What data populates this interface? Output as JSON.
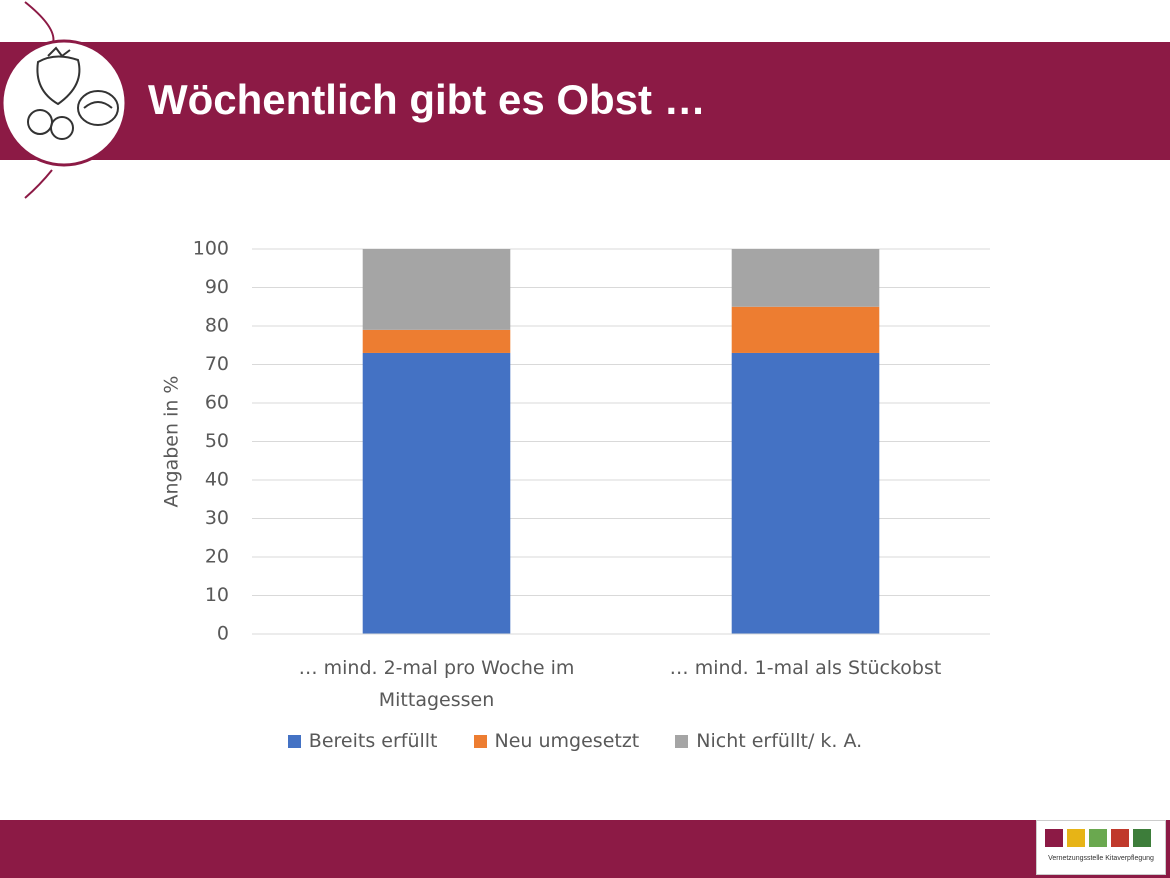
{
  "slide_title": "Wöchentlich gibt es Obst …",
  "logo_text": "Vernetzungsstelle Kitaverpflegung",
  "chart_data": {
    "type": "stacked_bar",
    "y_label": "Angaben in %",
    "categories": [
      "… mind. 2-mal pro Woche im Mittagessen",
      "… mind. 1-mal als Stückobst"
    ],
    "series": [
      {
        "name": "Bereits erfüllt",
        "color": "#4472c4",
        "values": [
          73,
          73
        ]
      },
      {
        "name": "Neu umgesetzt",
        "color": "#ed7d31",
        "values": [
          6,
          12
        ]
      },
      {
        "name": "Nicht erfüllt/ k. A.",
        "color": "#a5a5a5",
        "values": [
          21,
          15
        ]
      }
    ],
    "ylim": [
      0,
      100
    ],
    "yticks": [
      0,
      10,
      20,
      30,
      40,
      50,
      60,
      70,
      80,
      90,
      100
    ],
    "grid": true,
    "legend": "bottom"
  }
}
